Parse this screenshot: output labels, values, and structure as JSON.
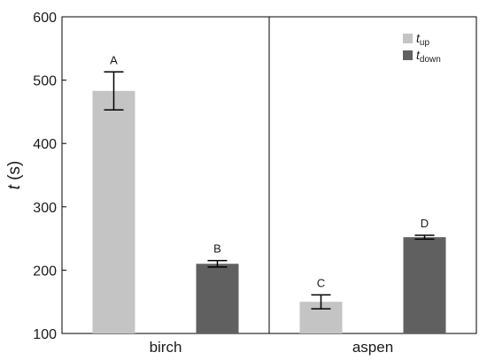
{
  "chart_data": {
    "type": "bar",
    "ylabel_var": "t",
    "ylabel_unit": "(s)",
    "ylim": [
      100,
      600
    ],
    "yticks": [
      100,
      200,
      300,
      400,
      500,
      600
    ],
    "categories": [
      "birch",
      "aspen"
    ],
    "series": [
      {
        "name_main": "t",
        "name_sub": "up",
        "color": "#c4c4c4",
        "values": [
          483,
          150
        ],
        "errors": [
          30,
          11
        ],
        "letters": [
          "A",
          "C"
        ]
      },
      {
        "name_main": "t",
        "name_sub": "down",
        "color": "#606060",
        "values": [
          210,
          252
        ],
        "errors": [
          5,
          3
        ],
        "letters": [
          "B",
          "D"
        ]
      }
    ],
    "grid": false,
    "legend_position": "top-right"
  }
}
